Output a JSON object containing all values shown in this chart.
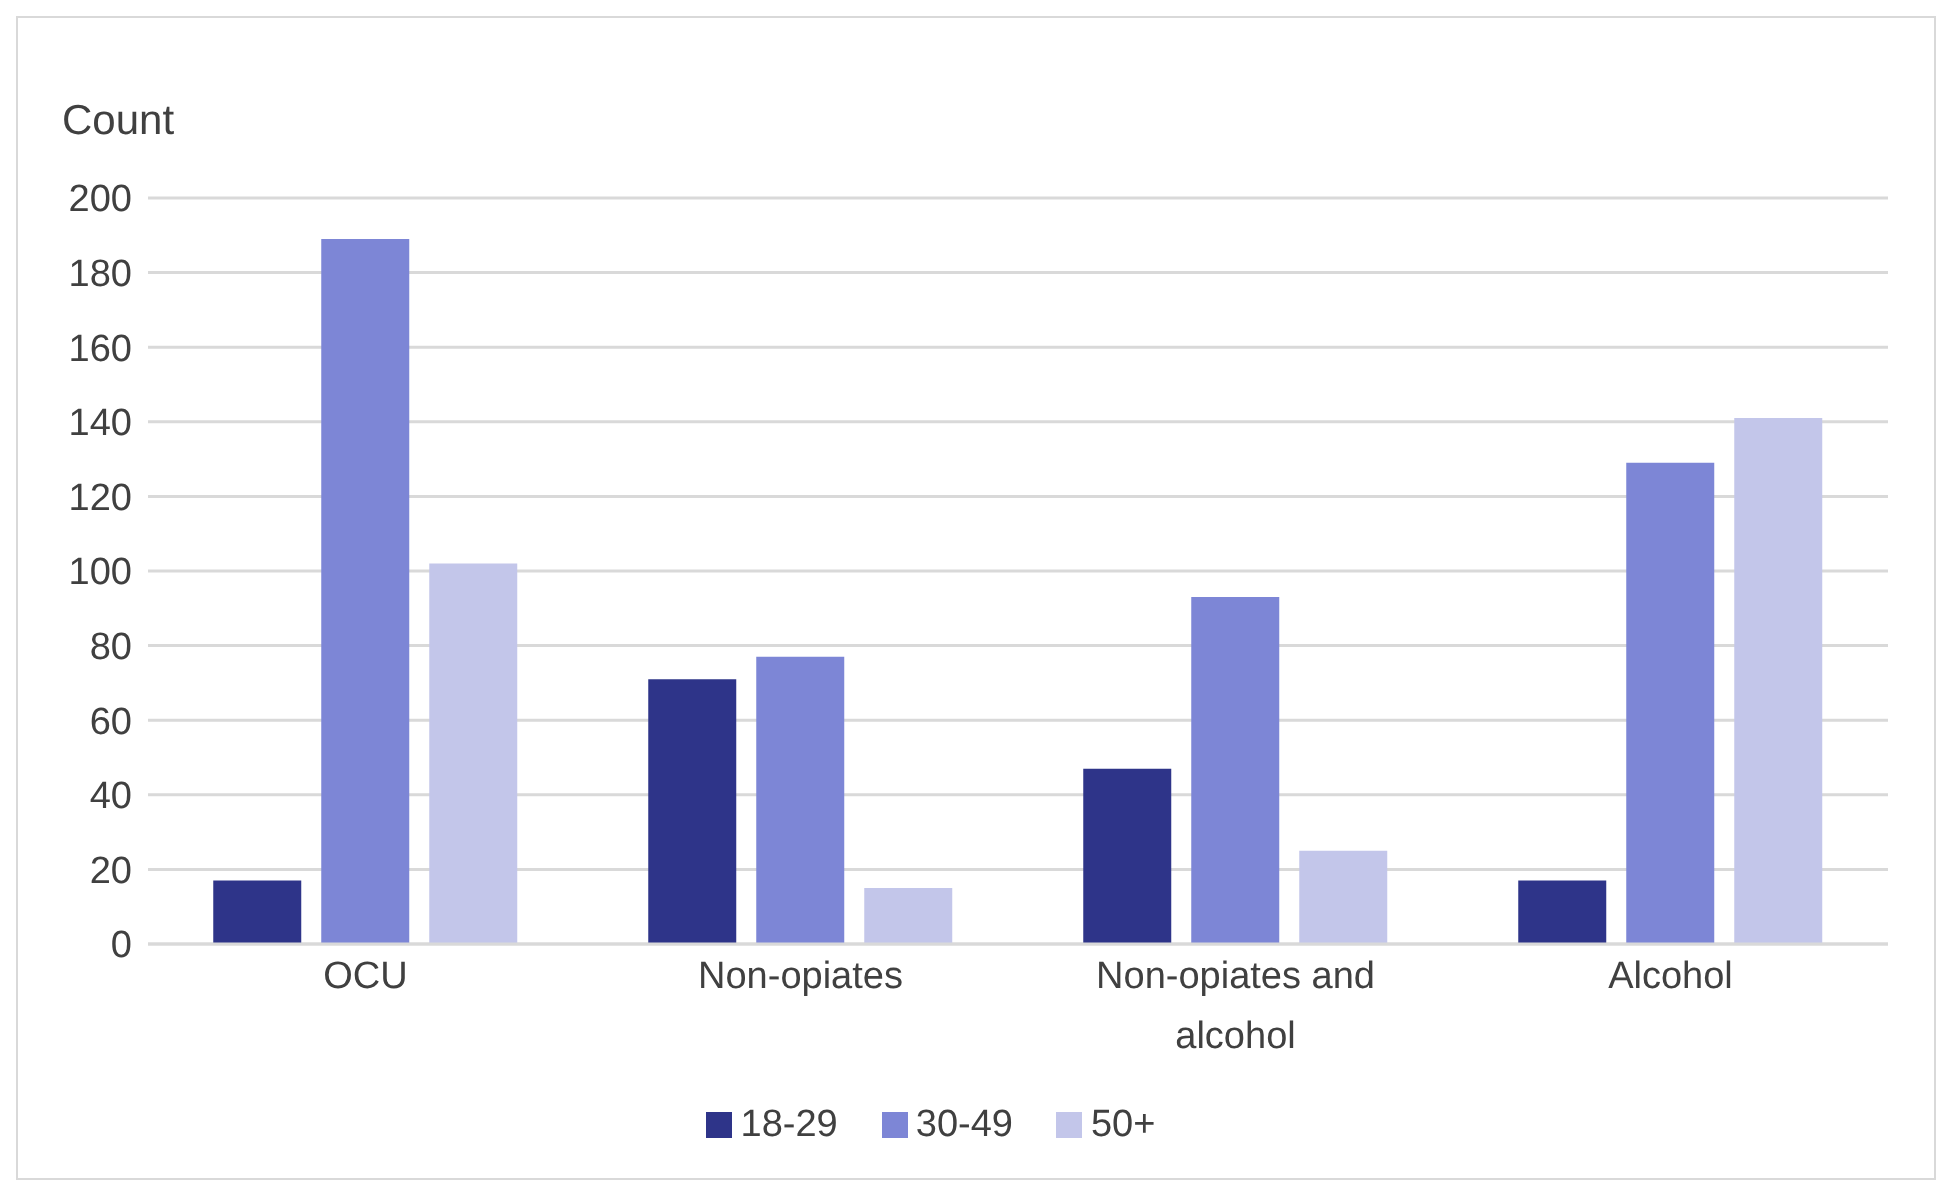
{
  "chart_data": {
    "type": "bar",
    "ylabel": "Count",
    "categories": [
      "OCU",
      "Non-opiates",
      "Non-opiates and alcohol",
      "Alcohol"
    ],
    "series": [
      {
        "name": "18-29",
        "color": "#2e3489",
        "values": [
          17,
          71,
          47,
          17
        ]
      },
      {
        "name": "30-49",
        "color": "#7d86d6",
        "values": [
          189,
          77,
          93,
          129
        ]
      },
      {
        "name": "50+",
        "color": "#c3c6ea",
        "values": [
          102,
          15,
          25,
          141
        ]
      }
    ],
    "ylim": [
      0,
      200
    ],
    "yticks": [
      0,
      20,
      40,
      60,
      80,
      100,
      120,
      140,
      160,
      180,
      200
    ],
    "grid": "y",
    "legend": "bottom"
  }
}
